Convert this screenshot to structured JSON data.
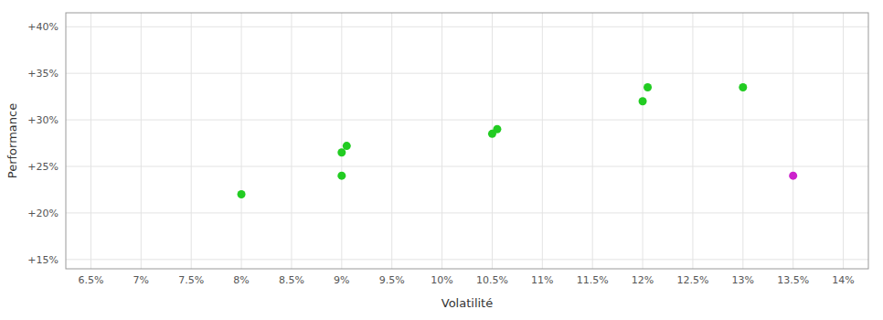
{
  "chart_data": {
    "type": "scatter",
    "xlabel": "Volatilité",
    "ylabel": "Performance",
    "series": [
      {
        "color": "#22cc22",
        "marker": "circle",
        "x": [
          8.0,
          9.0,
          9.0,
          9.05,
          10.5,
          10.55,
          12.0,
          12.05,
          13.0
        ],
        "values": [
          22.0,
          24.0,
          26.5,
          27.2,
          28.5,
          29.0,
          32.0,
          33.5,
          33.5
        ]
      },
      {
        "color": "#cc22cc",
        "marker": "circle",
        "x": [
          13.5
        ],
        "values": [
          24.0
        ]
      }
    ],
    "xlim": [
      6.25,
      14.25
    ],
    "ylim": [
      14.0,
      41.5
    ],
    "xticks": [
      {
        "value": 6.5,
        "label": "6.5%"
      },
      {
        "value": 7.0,
        "label": "7%"
      },
      {
        "value": 7.5,
        "label": "7.5%"
      },
      {
        "value": 8.0,
        "label": "8%"
      },
      {
        "value": 8.5,
        "label": "8.5%"
      },
      {
        "value": 9.0,
        "label": "9%"
      },
      {
        "value": 9.5,
        "label": "9.5%"
      },
      {
        "value": 10.0,
        "label": "10%"
      },
      {
        "value": 10.5,
        "label": "10.5%"
      },
      {
        "value": 11.0,
        "label": "11%"
      },
      {
        "value": 11.5,
        "label": "11.5%"
      },
      {
        "value": 12.0,
        "label": "12%"
      },
      {
        "value": 12.5,
        "label": "12.5%"
      },
      {
        "value": 13.0,
        "label": "13%"
      },
      {
        "value": 13.5,
        "label": "13.5%"
      },
      {
        "value": 14.0,
        "label": "14%"
      }
    ],
    "yticks": [
      {
        "value": 15,
        "label": "+15%"
      },
      {
        "value": 20,
        "label": "+20%"
      },
      {
        "value": 25,
        "label": "+25%"
      },
      {
        "value": 30,
        "label": "+30%"
      },
      {
        "value": 35,
        "label": "+35%"
      },
      {
        "value": 40,
        "label": "+40%"
      }
    ],
    "grid": true
  }
}
